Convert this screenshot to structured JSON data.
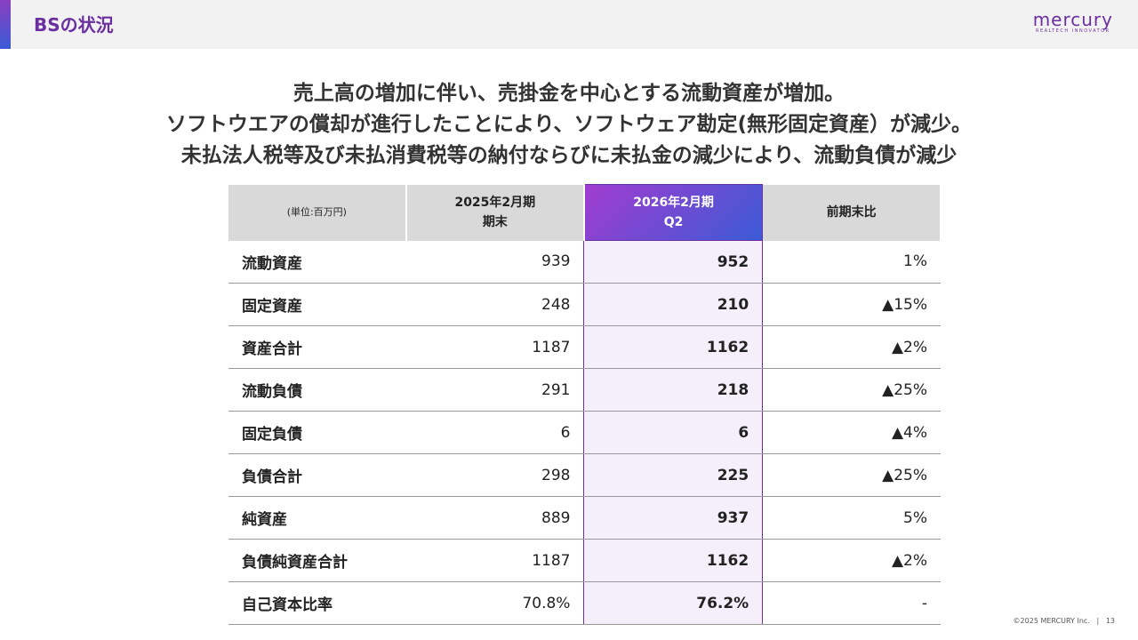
{
  "header": {
    "title": "BSの状況",
    "logo": "mercury",
    "logo_subtitle": "REALTECH INNOVATOR"
  },
  "headline": [
    "売上高の増加に伴い、売掛金を中心とする流動資産が増加。",
    "ソフトウエアの償却が進行したことにより、ソフトウェア勘定(無形固定資産）が減少。",
    "未払法人税等及び未払消費税等の納付ならびに未払金の減少により、流動負債が減少"
  ],
  "table": {
    "header": [
      [
        "(単位:百万円)"
      ],
      [
        "2025年2月期",
        "期末"
      ],
      [
        "2026年2月期",
        "Q2"
      ],
      [
        "前期末比"
      ]
    ],
    "rows": [
      [
        "流動資産",
        939,
        952,
        "1%"
      ],
      [
        "固定資産",
        248,
        210,
        "▲15%"
      ],
      [
        "資産合計",
        1187,
        1162,
        "▲2%"
      ],
      [
        "流動負債",
        291,
        218,
        "▲25%"
      ],
      [
        "固定負債",
        6,
        6,
        "▲4%"
      ],
      [
        "負債合計",
        298,
        225,
        "▲25%"
      ],
      [
        "純資産",
        889,
        937,
        "5%"
      ],
      [
        "負債純資産合計",
        1187,
        1162,
        "▲2%"
      ],
      [
        "自己資本比率",
        "70.8%",
        "76.2%",
        "-"
      ]
    ]
  },
  "footer": {
    "copyright": "©2025 MERCURY Inc.",
    "page": "13"
  }
}
